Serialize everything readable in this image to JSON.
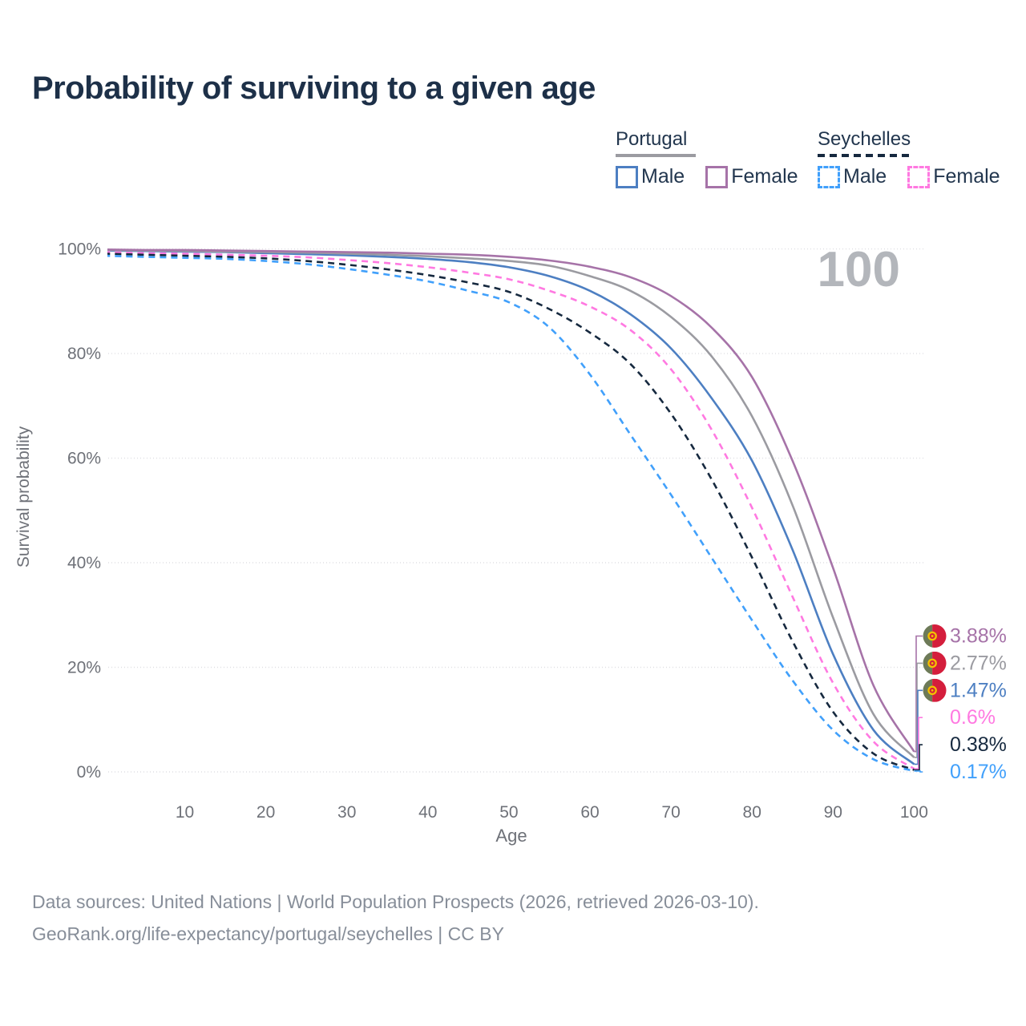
{
  "title": "Probability of surviving to a given age",
  "watermark_age": "100",
  "ylabel": "Survival probability",
  "xlabel": "Age",
  "legend": {
    "groups": [
      {
        "label": "Portugal",
        "underline": "solid",
        "items": [
          {
            "label": "Male",
            "series": 2
          },
          {
            "label": "Female",
            "series": 0
          }
        ]
      },
      {
        "label": "Seychelles",
        "underline": "dashed",
        "items": [
          {
            "label": "Male",
            "series": 5
          },
          {
            "label": "Female",
            "series": 3
          }
        ]
      }
    ]
  },
  "colors": {
    "title_text": "#1d3048",
    "legend_text": "#22364e",
    "axis_text": "#6e7178",
    "footer_text": "#878e99",
    "watermark": "#b3b6bb",
    "gridline": "#dfdfe3"
  },
  "chart_data": {
    "type": "line",
    "title": "Probability of surviving to a given age",
    "xlabel": "Age",
    "ylabel": "Survival probability",
    "xlim": [
      0,
      100
    ],
    "ylim": [
      0,
      100
    ],
    "grid": "horizontal-only",
    "x_ticks": [
      10,
      20,
      30,
      40,
      50,
      60,
      70,
      80,
      90,
      100
    ],
    "y_ticks": [
      0,
      20,
      40,
      60,
      80,
      100
    ],
    "y_tick_labels": [
      "0%",
      "20%",
      "40%",
      "60%",
      "80%",
      "100%"
    ],
    "x": [
      0,
      5,
      10,
      15,
      20,
      25,
      30,
      35,
      40,
      45,
      50,
      55,
      60,
      65,
      70,
      75,
      80,
      85,
      90,
      95,
      100
    ],
    "series": [
      {
        "name": "Portugal Female",
        "color": "#a673a8",
        "dash": "solid",
        "flag": "portugal",
        "end_label": "3.88%",
        "values": [
          99.9,
          99.8,
          99.8,
          99.7,
          99.6,
          99.5,
          99.4,
          99.3,
          99.1,
          98.9,
          98.5,
          97.8,
          96.6,
          94.6,
          91.0,
          85.0,
          75.5,
          59.5,
          39.0,
          16.5,
          3.88
        ]
      },
      {
        "name": "Portugal",
        "color": "#9b9ba1",
        "dash": "solid",
        "flag": "portugal",
        "end_label": "2.77%",
        "values": [
          99.8,
          99.7,
          99.6,
          99.5,
          99.4,
          99.3,
          99.1,
          98.9,
          98.6,
          98.2,
          97.7,
          96.8,
          94.8,
          92.0,
          87.0,
          79.5,
          68.0,
          51.0,
          29.5,
          11.0,
          2.77
        ]
      },
      {
        "name": "Portugal Male",
        "color": "#4d7fc2",
        "dash": "solid",
        "flag": "portugal",
        "end_label": "1.47%",
        "values": [
          99.7,
          99.6,
          99.5,
          99.4,
          99.2,
          99.0,
          98.8,
          98.5,
          98.1,
          97.5,
          96.5,
          94.8,
          92.0,
          87.5,
          81.0,
          71.5,
          59.5,
          42.5,
          22.5,
          8.0,
          1.47
        ]
      },
      {
        "name": "Seychelles Female",
        "color": "#ff79e1",
        "dash": "dashed",
        "flag": "seychelles",
        "end_label": "0.6%",
        "values": [
          99.4,
          99.2,
          99.1,
          98.9,
          98.7,
          98.4,
          97.9,
          97.3,
          96.5,
          95.5,
          94.2,
          92.0,
          89.0,
          84.5,
          77.0,
          65.5,
          50.5,
          33.5,
          17.0,
          5.8,
          0.6
        ]
      },
      {
        "name": "Seychelles",
        "color": "#16293f",
        "dash": "dashed",
        "flag": "seychelles",
        "end_label": "0.38%",
        "values": [
          99.1,
          98.9,
          98.7,
          98.5,
          98.2,
          97.7,
          97.0,
          96.1,
          95.0,
          93.6,
          91.8,
          88.5,
          84.0,
          78.0,
          68.5,
          56.0,
          41.0,
          25.0,
          11.5,
          3.5,
          0.38
        ]
      },
      {
        "name": "Seychelles Male",
        "color": "#41a0fb",
        "dash": "dashed",
        "flag": "seychelles",
        "end_label": "0.17%",
        "values": [
          98.7,
          98.5,
          98.3,
          98.1,
          97.7,
          97.1,
          96.2,
          95.1,
          93.8,
          92.0,
          89.8,
          85.0,
          76.0,
          64.5,
          53.0,
          41.0,
          29.0,
          17.5,
          8.0,
          2.4,
          0.17
        ]
      }
    ]
  },
  "footer": {
    "line1": "Data sources: United Nations | World Population Prospects (2026, retrieved 2026-03-10).",
    "line2": "GeoRank.org/life-expectancy/portugal/seychelles | CC BY"
  }
}
